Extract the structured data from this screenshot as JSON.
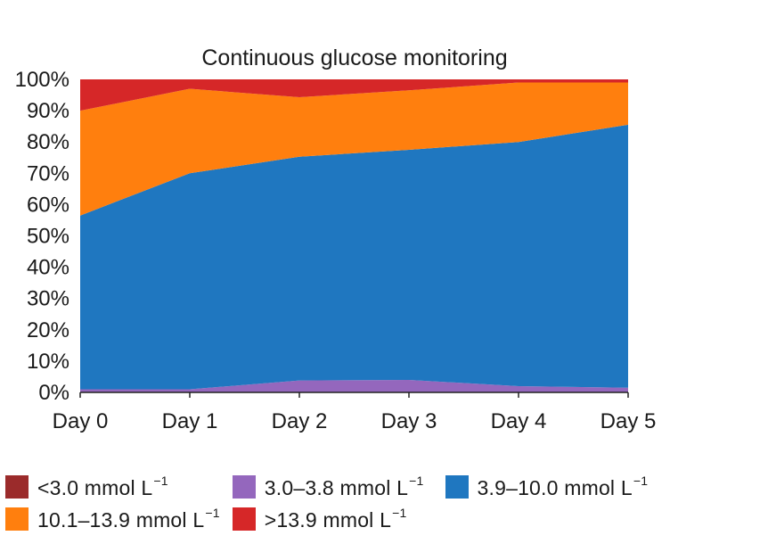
{
  "chart_data": {
    "type": "area",
    "stacked": true,
    "title": "Continuous glucose monitoring",
    "categories": [
      "Day 0",
      "Day 1",
      "Day 2",
      "Day 3",
      "Day 4",
      "Day 5"
    ],
    "y_ticks": [
      "0%",
      "10%",
      "20%",
      "30%",
      "40%",
      "50%",
      "60%",
      "70%",
      "80%",
      "90%",
      "100%"
    ],
    "ylim": [
      0,
      100
    ],
    "grid": false,
    "legend_placement": "bottom",
    "series": [
      {
        "name": "<3.0 mmol L",
        "unit_superscript": "−1",
        "color": "#9b2b2b",
        "values": [
          0,
          0,
          0,
          0,
          0,
          0
        ]
      },
      {
        "name": "3.0–3.8 mmol L",
        "unit_superscript": "−1",
        "color": "#9467bd",
        "values": [
          1,
          1,
          3.8,
          4,
          2,
          1.5
        ]
      },
      {
        "name": "3.9–10.0 mmol L",
        "unit_superscript": "−1",
        "color": "#1f77c0",
        "values": [
          55.5,
          69,
          71.5,
          73.5,
          78,
          84
        ]
      },
      {
        "name": "10.1–13.9 mmol L",
        "unit_superscript": "−1",
        "color": "#ff7f0e",
        "values": [
          33.5,
          27,
          19,
          19,
          19,
          13.5
        ]
      },
      {
        "name": ">13.9 mmol L",
        "unit_superscript": "−1",
        "color": "#d62728",
        "values": [
          10,
          3,
          5.7,
          3.5,
          1,
          1
        ]
      }
    ]
  }
}
